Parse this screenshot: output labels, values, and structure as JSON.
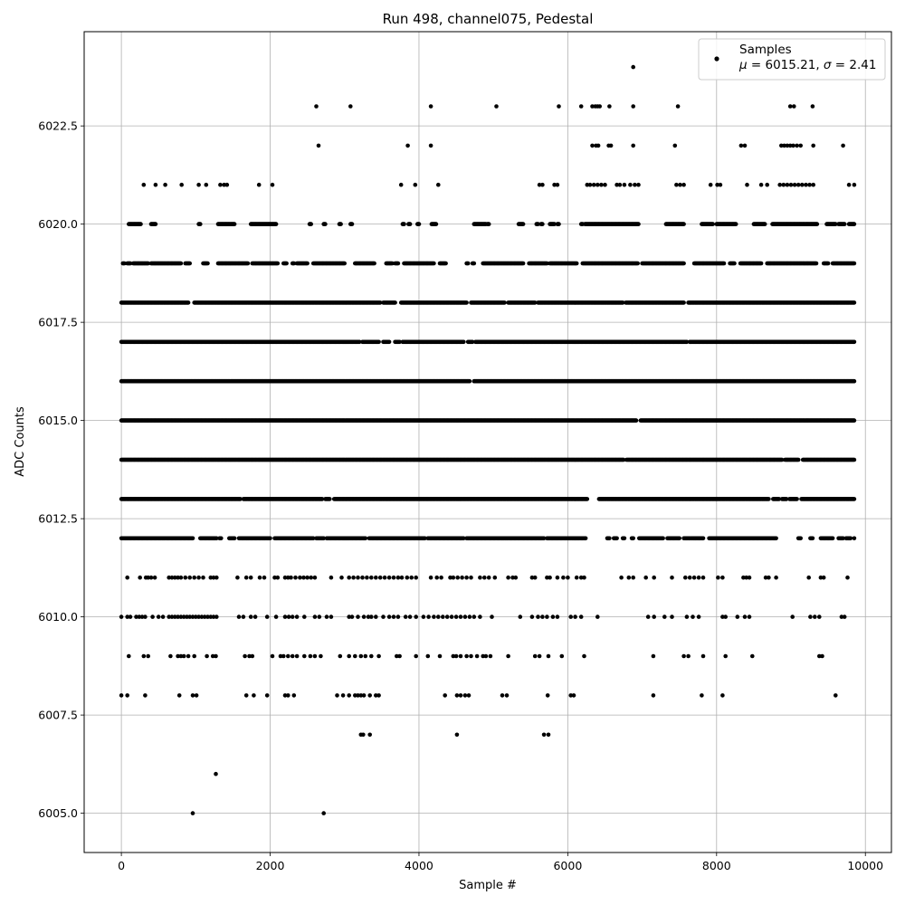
{
  "chart_data": {
    "type": "scatter",
    "title": "Run 498, channel075, Pedestal",
    "xlabel": "Sample #",
    "ylabel": "ADC Counts",
    "xlim": [
      -500,
      10350
    ],
    "ylim": [
      6004.0,
      6024.9
    ],
    "xticks": [
      0,
      2000,
      4000,
      6000,
      8000,
      10000
    ],
    "xtick_labels": [
      "0",
      "2000",
      "4000",
      "6000",
      "8000",
      "10000"
    ],
    "yticks": [
      6005.0,
      6007.5,
      6010.0,
      6012.5,
      6015.0,
      6017.5,
      6020.0,
      6022.5
    ],
    "ytick_labels": [
      "6005.0",
      "6007.5",
      "6010.0",
      "6012.5",
      "6015.0",
      "6017.5",
      "6020.0",
      "6022.5"
    ],
    "grid": true,
    "legend_position": "top-right",
    "marker_color": "#000000",
    "series": [
      {
        "name": "Samples",
        "legend_stats": "μ = 6015.21, σ = 2.41",
        "bands": [
          {
            "y": 6024,
            "x": [
              6880
            ]
          },
          {
            "y": 6023,
            "x": [
              2620,
              3080,
              4160,
              5040,
              5880,
              6180,
              6330,
              6370,
              6400,
              6430,
              6560,
              6880,
              7480,
              8990,
              9040,
              9290
            ]
          },
          {
            "y": 6022,
            "x": [
              2650,
              3850,
              4160,
              6330,
              6380,
              6410,
              6550,
              6580,
              6880,
              7440,
              8330,
              8380,
              8870,
              8910,
              8950,
              8990,
              9030,
              9080,
              9130,
              9300,
              9700
            ]
          },
          {
            "y": 6021,
            "x": [
              300,
              460,
              590,
              810,
              1040,
              1140,
              1330,
              1380,
              1420,
              1850,
              2030,
              3760,
              3950,
              4260,
              5620,
              5660,
              5820,
              5860,
              6260,
              6300,
              6350,
              6400,
              6450,
              6500,
              6660,
              6700,
              6760,
              6840,
              6900,
              6950,
              7460,
              7510,
              7560,
              7920,
              8010,
              8050,
              8410,
              8600,
              8680,
              8850,
              8900,
              8950,
              9000,
              9050,
              9100,
              9150,
              9200,
              9250,
              9300,
              9780,
              9850
            ]
          },
          {
            "y": 6020,
            "span": [
              [
                100,
                260
              ],
              [
                400,
                460
              ],
              [
                1040,
                1060
              ],
              [
                1300,
                1520
              ],
              [
                1740,
                2080
              ],
              [
                2530,
                2550
              ],
              [
                2720,
                2740
              ],
              [
                2930,
                2950
              ],
              [
                3080,
                3100
              ],
              [
                3780,
                3800
              ],
              [
                3860,
                3880
              ],
              [
                3980,
                4000
              ],
              [
                4170,
                4230
              ],
              [
                4740,
                4900
              ],
              [
                4920,
                4940
              ],
              [
                5340,
                5400
              ],
              [
                5580,
                5600
              ],
              [
                5640,
                5660
              ],
              [
                5760,
                5820
              ],
              [
                5860,
                5880
              ],
              [
                6180,
                6200
              ],
              [
                6230,
                6950
              ],
              [
                7320,
                7560
              ],
              [
                7800,
                7950
              ],
              [
                8000,
                8260
              ],
              [
                8500,
                8650
              ],
              [
                8750,
                9350
              ],
              [
                9480,
                9600
              ],
              [
                9640,
                9720
              ],
              [
                9780,
                9850
              ]
            ]
          },
          {
            "y": 6019,
            "span": [
              [
                20,
                40
              ],
              [
                80,
                120
              ],
              [
                160,
                360
              ],
              [
                400,
                800
              ],
              [
                860,
                920
              ],
              [
                1100,
                1160
              ],
              [
                1300,
                1700
              ],
              [
                1760,
                2100
              ],
              [
                2180,
                2220
              ],
              [
                2300,
                2320
              ],
              [
                2360,
                2500
              ],
              [
                2580,
                3000
              ],
              [
                3140,
                3400
              ],
              [
                3560,
                3640
              ],
              [
                3680,
                3720
              ],
              [
                3800,
                4200
              ],
              [
                4280,
                4360
              ],
              [
                4640,
                4660
              ],
              [
                4720,
                4740
              ],
              [
                4860,
                5400
              ],
              [
                5480,
                5720
              ],
              [
                5760,
                6120
              ],
              [
                6200,
                6940
              ],
              [
                7000,
                7560
              ],
              [
                7700,
                8100
              ],
              [
                8180,
                8240
              ],
              [
                8320,
                8600
              ],
              [
                8680,
                9340
              ],
              [
                9440,
                9500
              ],
              [
                9560,
                9850
              ]
            ]
          },
          {
            "y": 6018,
            "span": [
              [
                0,
                900
              ],
              [
                980,
                3480
              ],
              [
                3520,
                3680
              ],
              [
                3760,
                4640
              ],
              [
                4700,
                5150
              ],
              [
                5200,
                5560
              ],
              [
                5600,
                6740
              ],
              [
                6780,
                7560
              ],
              [
                7620,
                9850
              ]
            ]
          },
          {
            "y": 6017,
            "span": [
              [
                0,
                3200
              ],
              [
                3240,
                3460
              ],
              [
                3520,
                3600
              ],
              [
                3680,
                3740
              ],
              [
                3780,
                4600
              ],
              [
                4660,
                4720
              ],
              [
                4760,
                7600
              ],
              [
                7640,
                9850
              ]
            ]
          },
          {
            "y": 6016,
            "span": [
              [
                0,
                4680
              ],
              [
                4740,
                9850
              ]
            ]
          },
          {
            "y": 6015,
            "span": [
              [
                0,
                6920
              ],
              [
                6980,
                9850
              ]
            ]
          },
          {
            "y": 6014,
            "span": [
              [
                0,
                6750
              ],
              [
                6790,
                8880
              ],
              [
                8920,
                9100
              ],
              [
                9160,
                9850
              ]
            ]
          },
          {
            "y": 6013,
            "span": [
              [
                0,
                1600
              ],
              [
                1640,
                2700
              ],
              [
                2740,
                2800
              ],
              [
                2860,
                6260
              ],
              [
                6420,
                8700
              ],
              [
                8760,
                8840
              ],
              [
                8880,
                8940
              ],
              [
                8980,
                9080
              ],
              [
                9140,
                9850
              ]
            ]
          },
          {
            "y": 6012,
            "span": [
              [
                0,
                960
              ],
              [
                1060,
                1280
              ],
              [
                1320,
                1340
              ],
              [
                1450,
                1520
              ],
              [
                1580,
                2000
              ],
              [
                2060,
                2580
              ],
              [
                2620,
                2720
              ],
              [
                2760,
                3280
              ],
              [
                3330,
                4080
              ],
              [
                4120,
                4600
              ],
              [
                4640,
                5680
              ],
              [
                5720,
                6240
              ],
              [
                6530,
                6560
              ],
              [
                6620,
                6660
              ],
              [
                6740,
                6760
              ],
              [
                6860,
                6880
              ],
              [
                6960,
                7280
              ],
              [
                7340,
                7500
              ],
              [
                7560,
                7640
              ],
              [
                7660,
                7820
              ],
              [
                7900,
                8800
              ],
              [
                9100,
                9130
              ],
              [
                9260,
                9290
              ],
              [
                9400,
                9560
              ],
              [
                9640,
                9700
              ],
              [
                9740,
                9800
              ],
              [
                9850,
                9850
              ]
            ]
          },
          {
            "y": 6011,
            "x": [
              80,
              250,
              330,
              360,
              400,
              450,
              640,
              680,
              720,
              760,
              800,
              860,
              920,
              980,
              1040,
              1100,
              1200,
              1240,
              1280,
              1560,
              1680,
              1740,
              1860,
              1920,
              2060,
              2100,
              2200,
              2240,
              2280,
              2340,
              2400,
              2450,
              2500,
              2550,
              2600,
              2820,
              2960,
              3060,
              3120,
              3180,
              3240,
              3300,
              3360,
              3420,
              3480,
              3540,
              3600,
              3660,
              3720,
              3770,
              3840,
              3900,
              3960,
              4160,
              4240,
              4300,
              4420,
              4460,
              4520,
              4580,
              4640,
              4700,
              4820,
              4880,
              4940,
              5020,
              5200,
              5260,
              5300,
              5520,
              5560,
              5720,
              5760,
              5860,
              5940,
              6000,
              6120,
              6180,
              6220,
              6720,
              6820,
              6880,
              7050,
              7160,
              7400,
              7580,
              7640,
              7700,
              7760,
              7820,
              8020,
              8080,
              8360,
              8400,
              8440,
              8660,
              8700,
              8800,
              9240,
              9400,
              9440,
              9760
            ]
          },
          {
            "y": 6010,
            "x": [
              0,
              80,
              120,
              200,
              240,
              280,
              320,
              420,
              500,
              560,
              640,
              680,
              720,
              760,
              800,
              840,
              880,
              920,
              960,
              1000,
              1040,
              1080,
              1120,
              1160,
              1200,
              1240,
              1280,
              1580,
              1640,
              1740,
              1800,
              1960,
              2080,
              2200,
              2250,
              2300,
              2360,
              2460,
              2600,
              2660,
              2760,
              2820,
              3060,
              3100,
              3180,
              3260,
              3320,
              3360,
              3420,
              3520,
              3600,
              3660,
              3720,
              3820,
              3880,
              3960,
              4060,
              4130,
              4200,
              4260,
              4320,
              4380,
              4440,
              4500,
              4560,
              4620,
              4680,
              4740,
              4820,
              4980,
              5360,
              5520,
              5600,
              5660,
              5720,
              5800,
              5860,
              6040,
              6100,
              6180,
              6400,
              7080,
              7160,
              7300,
              7400,
              7600,
              7680,
              7760,
              8080,
              8120,
              8280,
              8380,
              8440,
              9020,
              9260,
              9320,
              9380,
              9680,
              9720
            ]
          },
          {
            "y": 6009,
            "x": [
              100,
              300,
              360,
              660,
              760,
              800,
              840,
              900,
              980,
              1150,
              1230,
              1270,
              1660,
              1720,
              1760,
              2030,
              2140,
              2180,
              2240,
              2300,
              2360,
              2460,
              2540,
              2600,
              2680,
              2940,
              3060,
              3140,
              3220,
              3280,
              3360,
              3460,
              3700,
              3740,
              3960,
              4120,
              4280,
              4460,
              4500,
              4560,
              4640,
              4700,
              4780,
              4860,
              4900,
              4960,
              5200,
              5560,
              5620,
              5740,
              5920,
              6220,
              7150,
              7560,
              7620,
              7820,
              8120,
              8480,
              9380,
              9420
            ]
          },
          {
            "y": 6008,
            "x": [
              0,
              80,
              320,
              780,
              960,
              1010,
              1680,
              1780,
              1960,
              2200,
              2240,
              2320,
              2900,
              2980,
              3060,
              3140,
              3180,
              3220,
              3260,
              3340,
              3420,
              3460,
              4350,
              4510,
              4560,
              4620,
              4670,
              5120,
              5180,
              5730,
              6040,
              6080,
              7150,
              7800,
              8080,
              9600
            ]
          },
          {
            "y": 6007,
            "x": [
              3220,
              3250,
              3340,
              4510,
              5680,
              5740
            ]
          },
          {
            "y": 6006,
            "x": [
              1270
            ]
          },
          {
            "y": 6005,
            "x": [
              960,
              2720
            ]
          }
        ]
      }
    ]
  }
}
